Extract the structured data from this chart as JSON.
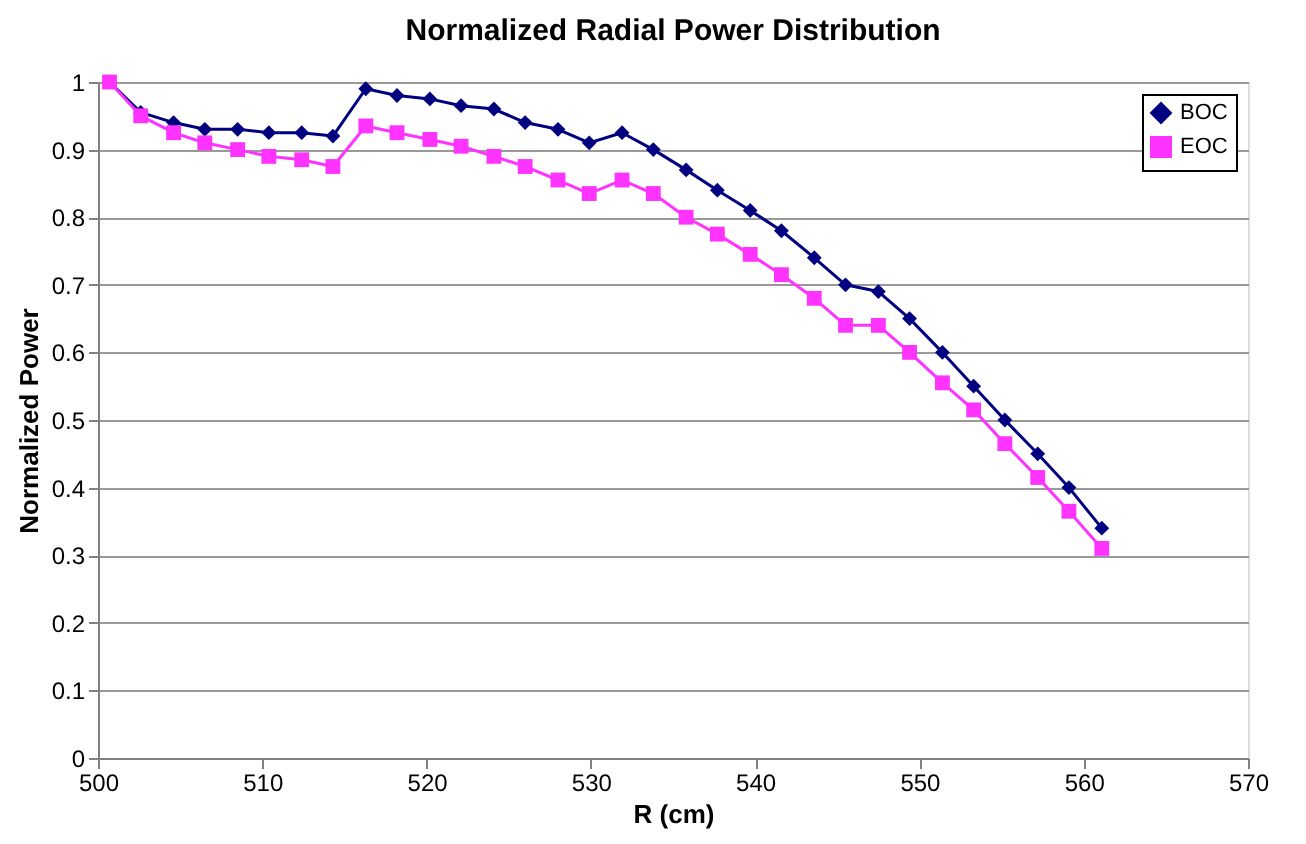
{
  "chart_data": {
    "type": "line",
    "title": "Normalized Radial Power Distribution",
    "xlabel": "R (cm)",
    "ylabel": "Normalized Power",
    "x": [
      500.7,
      502.6,
      504.6,
      506.5,
      508.5,
      510.4,
      512.4,
      514.3,
      516.3,
      518.2,
      520.2,
      522.1,
      524.1,
      526.0,
      528.0,
      529.9,
      531.9,
      533.8,
      535.8,
      537.7,
      539.7,
      541.6,
      543.6,
      545.5,
      547.5,
      549.4,
      551.4,
      553.3,
      555.2,
      557.2,
      559.1,
      561.1
    ],
    "series": [
      {
        "name": "BOC",
        "color": "#000080",
        "marker": "diamond",
        "values": [
          1.0,
          0.955,
          0.94,
          0.93,
          0.93,
          0.925,
          0.925,
          0.92,
          0.99,
          0.98,
          0.975,
          0.965,
          0.96,
          0.94,
          0.93,
          0.91,
          0.925,
          0.9,
          0.87,
          0.84,
          0.81,
          0.78,
          0.74,
          0.7,
          0.69,
          0.65,
          0.6,
          0.55,
          0.5,
          0.45,
          0.4,
          0.34
        ]
      },
      {
        "name": "EOC",
        "color": "#ff33ff",
        "marker": "square",
        "values": [
          1.0,
          0.95,
          0.925,
          0.91,
          0.9,
          0.89,
          0.885,
          0.875,
          0.935,
          0.925,
          0.915,
          0.905,
          0.89,
          0.875,
          0.855,
          0.835,
          0.855,
          0.835,
          0.8,
          0.775,
          0.745,
          0.715,
          0.68,
          0.64,
          0.64,
          0.6,
          0.555,
          0.515,
          0.465,
          0.415,
          0.365,
          0.31
        ]
      }
    ],
    "xlim": [
      500,
      570
    ],
    "xticks": [
      500,
      510,
      520,
      530,
      540,
      550,
      560,
      570
    ],
    "ylim": [
      0,
      1
    ],
    "yticks": [
      0,
      0.1,
      0.2,
      0.3,
      0.4,
      0.5,
      0.6,
      0.7,
      0.8,
      0.9,
      1
    ],
    "grid": "y",
    "legend": "top right"
  }
}
